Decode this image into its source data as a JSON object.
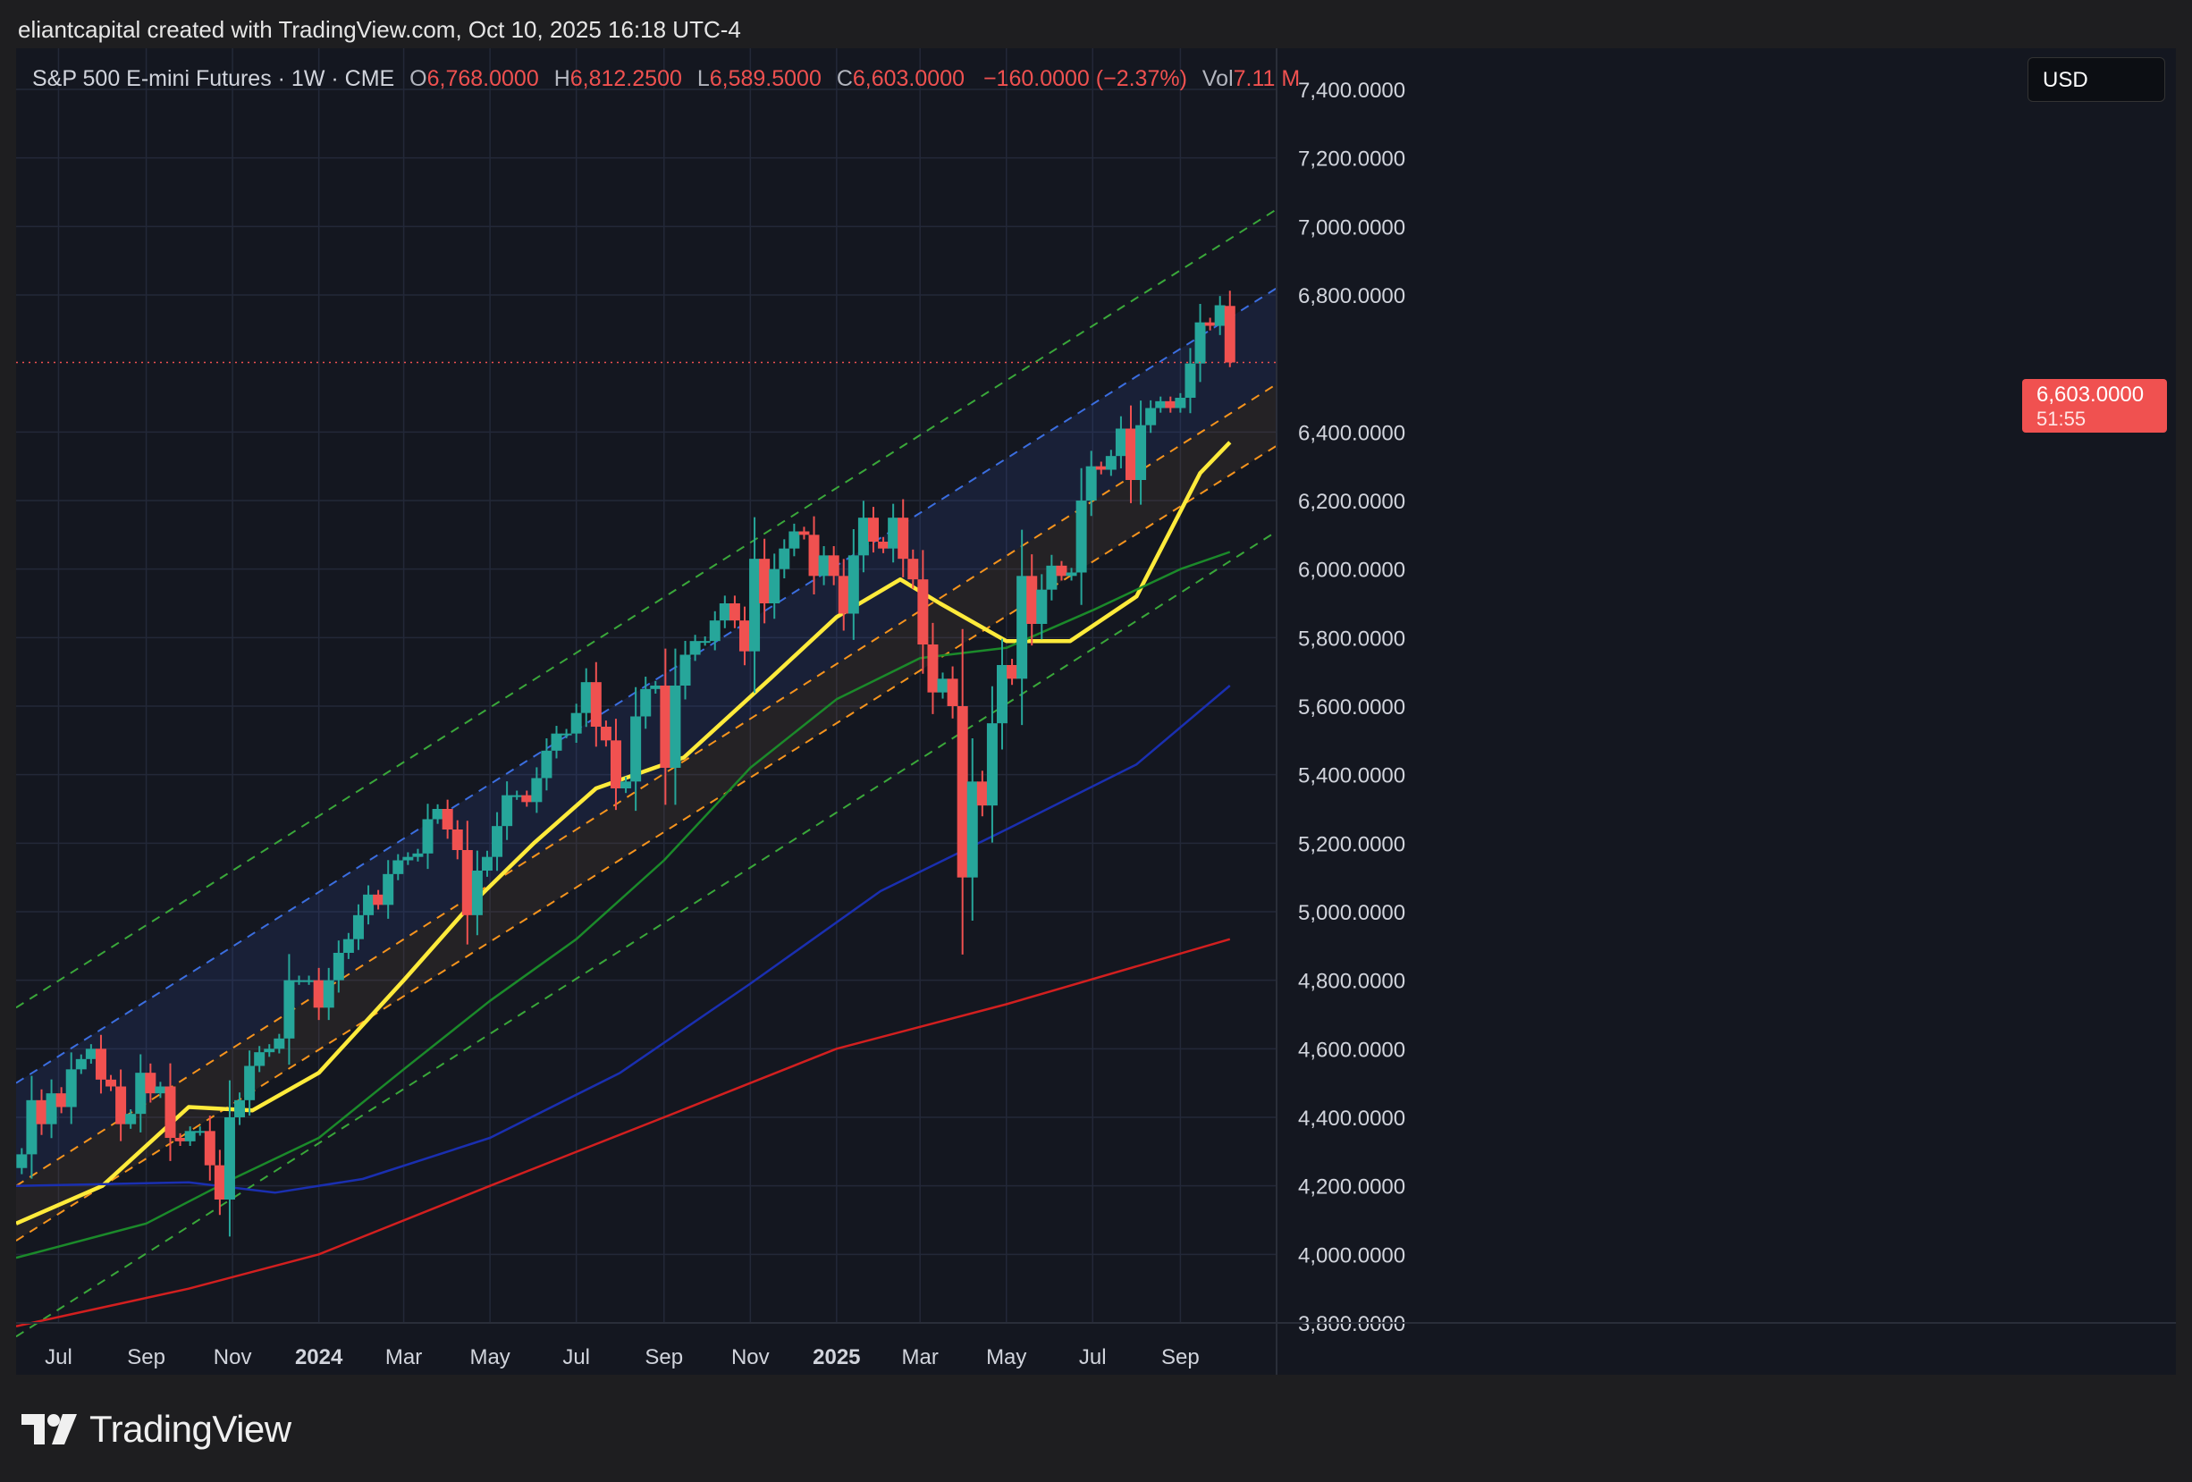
{
  "header": {
    "attribution": "eliantcapital created with TradingView.com, Oct 10, 2025 16:18 UTC-4"
  },
  "legend": {
    "symbol": "S&P 500 E-mini Futures · 1W · CME",
    "o_label": "O",
    "o_value": "6,768.0000",
    "h_label": "H",
    "h_value": "6,812.2500",
    "l_label": "L",
    "l_value": "6,589.5000",
    "c_label": "C",
    "c_value": "6,603.0000",
    "change": "−160.0000 (−2.37%)",
    "vol_label": "Vol",
    "vol_value": "7.11 M"
  },
  "currency": "USD",
  "price_tag": {
    "price": "6,603.0000",
    "countdown": "51:55"
  },
  "brand": "TradingView",
  "colors": {
    "up": "#26a69a",
    "down": "#f05150",
    "ma_fast": "#ffeb3b",
    "ma_mid": "#1b8a2a",
    "ma_slow": "#1a2fb0",
    "ma_long": "#d21f1f",
    "channel_upper": "#3b6ee0",
    "channel_mid": "#f7941d",
    "channel_outer": "#3aa83a",
    "background": "#141720"
  },
  "chart_data": {
    "type": "candlestick",
    "timeframe": "1W",
    "y_ticks": [
      "7,400.0000",
      "7,200.0000",
      "7,000.0000",
      "6,800.0000",
      "6,400.0000",
      "6,200.0000",
      "6,000.0000",
      "5,800.0000",
      "5,600.0000",
      "5,400.0000",
      "5,200.0000",
      "5,000.0000",
      "4,800.0000",
      "4,600.0000",
      "4,400.0000",
      "4,200.0000",
      "4,000.0000",
      "3,800.0000"
    ],
    "x_ticks": [
      {
        "label": "Jul",
        "date": "2023-07-01",
        "bold": false
      },
      {
        "label": "Sep",
        "date": "2023-09-01",
        "bold": false
      },
      {
        "label": "Nov",
        "date": "2023-11-01",
        "bold": false
      },
      {
        "label": "2024",
        "date": "2024-01-01",
        "bold": true
      },
      {
        "label": "Mar",
        "date": "2024-03-01",
        "bold": false
      },
      {
        "label": "May",
        "date": "2024-05-01",
        "bold": false
      },
      {
        "label": "Jul",
        "date": "2024-07-01",
        "bold": false
      },
      {
        "label": "Sep",
        "date": "2024-09-01",
        "bold": false
      },
      {
        "label": "Nov",
        "date": "2024-11-01",
        "bold": false
      },
      {
        "label": "2025",
        "date": "2025-01-01",
        "bold": true
      },
      {
        "label": "Mar",
        "date": "2025-03-01",
        "bold": false
      },
      {
        "label": "May",
        "date": "2025-05-01",
        "bold": false
      },
      {
        "label": "Jul",
        "date": "2025-07-01",
        "bold": false
      },
      {
        "label": "Sep",
        "date": "2025-09-01",
        "bold": false
      }
    ],
    "ylim": [
      3800,
      7520
    ],
    "xlim": [
      "2023-06-01",
      "2025-11-08"
    ],
    "current_price": 6603,
    "closes": [
      [
        "2023-06-05",
        4292
      ],
      [
        "2023-06-12",
        4450
      ],
      [
        "2023-06-19",
        4380
      ],
      [
        "2023-06-26",
        4470
      ],
      [
        "2023-07-03",
        4430
      ],
      [
        "2023-07-10",
        4540
      ],
      [
        "2023-07-17",
        4570
      ],
      [
        "2023-07-24",
        4600
      ],
      [
        "2023-07-31",
        4510
      ],
      [
        "2023-08-07",
        4490
      ],
      [
        "2023-08-14",
        4380
      ],
      [
        "2023-08-21",
        4410
      ],
      [
        "2023-08-28",
        4530
      ],
      [
        "2023-09-04",
        4470
      ],
      [
        "2023-09-11",
        4490
      ],
      [
        "2023-09-18",
        4340
      ],
      [
        "2023-09-25",
        4330
      ],
      [
        "2023-10-02",
        4360
      ],
      [
        "2023-10-09",
        4360
      ],
      [
        "2023-10-16",
        4260
      ],
      [
        "2023-10-23",
        4160
      ],
      [
        "2023-10-30",
        4400
      ],
      [
        "2023-11-06",
        4450
      ],
      [
        "2023-11-13",
        4550
      ],
      [
        "2023-11-20",
        4590
      ],
      [
        "2023-11-27",
        4600
      ],
      [
        "2023-12-04",
        4630
      ],
      [
        "2023-12-11",
        4800
      ],
      [
        "2023-12-18",
        4800
      ],
      [
        "2023-12-25",
        4800
      ],
      [
        "2024-01-01",
        4720
      ],
      [
        "2024-01-08",
        4800
      ],
      [
        "2024-01-15",
        4880
      ],
      [
        "2024-01-22",
        4920
      ],
      [
        "2024-01-29",
        4990
      ],
      [
        "2024-02-05",
        5050
      ],
      [
        "2024-02-12",
        5020
      ],
      [
        "2024-02-19",
        5110
      ],
      [
        "2024-02-26",
        5150
      ],
      [
        "2024-03-04",
        5160
      ],
      [
        "2024-03-11",
        5170
      ],
      [
        "2024-03-18",
        5270
      ],
      [
        "2024-03-25",
        5300
      ],
      [
        "2024-04-01",
        5240
      ],
      [
        "2024-04-08",
        5180
      ],
      [
        "2024-04-15",
        4990
      ],
      [
        "2024-04-22",
        5120
      ],
      [
        "2024-04-29",
        5160
      ],
      [
        "2024-05-06",
        5250
      ],
      [
        "2024-05-13",
        5340
      ],
      [
        "2024-05-20",
        5340
      ],
      [
        "2024-05-27",
        5320
      ],
      [
        "2024-06-03",
        5390
      ],
      [
        "2024-06-10",
        5470
      ],
      [
        "2024-06-17",
        5520
      ],
      [
        "2024-06-24",
        5520
      ],
      [
        "2024-07-01",
        5580
      ],
      [
        "2024-07-08",
        5670
      ],
      [
        "2024-07-15",
        5540
      ],
      [
        "2024-07-22",
        5500
      ],
      [
        "2024-07-29",
        5360
      ],
      [
        "2024-08-05",
        5380
      ],
      [
        "2024-08-12",
        5570
      ],
      [
        "2024-08-19",
        5650
      ],
      [
        "2024-08-26",
        5660
      ],
      [
        "2024-09-02",
        5420
      ],
      [
        "2024-09-09",
        5660
      ],
      [
        "2024-09-16",
        5750
      ],
      [
        "2024-09-23",
        5790
      ],
      [
        "2024-09-30",
        5790
      ],
      [
        "2024-10-07",
        5850
      ],
      [
        "2024-10-14",
        5900
      ],
      [
        "2024-10-21",
        5850
      ],
      [
        "2024-10-28",
        5760
      ],
      [
        "2024-11-04",
        6030
      ],
      [
        "2024-11-11",
        5900
      ],
      [
        "2024-11-18",
        6000
      ],
      [
        "2024-11-25",
        6060
      ],
      [
        "2024-12-02",
        6110
      ],
      [
        "2024-12-09",
        6100
      ],
      [
        "2024-12-16",
        5980
      ],
      [
        "2024-12-23",
        6040
      ],
      [
        "2024-12-30",
        5980
      ],
      [
        "2025-01-06",
        5870
      ],
      [
        "2025-01-13",
        6040
      ],
      [
        "2025-01-20",
        6150
      ],
      [
        "2025-01-27",
        6080
      ],
      [
        "2025-02-03",
        6060
      ],
      [
        "2025-02-10",
        6150
      ],
      [
        "2025-02-17",
        6030
      ],
      [
        "2025-02-24",
        5970
      ],
      [
        "2025-03-03",
        5780
      ],
      [
        "2025-03-10",
        5640
      ],
      [
        "2025-03-17",
        5680
      ],
      [
        "2025-03-24",
        5600
      ],
      [
        "2025-03-31",
        5100
      ],
      [
        "2025-04-07",
        5380
      ],
      [
        "2025-04-14",
        5310
      ],
      [
        "2025-04-21",
        5550
      ],
      [
        "2025-04-28",
        5720
      ],
      [
        "2025-05-05",
        5680
      ],
      [
        "2025-05-12",
        5980
      ],
      [
        "2025-05-19",
        5840
      ],
      [
        "2025-05-26",
        5940
      ],
      [
        "2025-06-02",
        6010
      ],
      [
        "2025-06-09",
        5980
      ],
      [
        "2025-06-16",
        5990
      ],
      [
        "2025-06-23",
        6200
      ],
      [
        "2025-06-30",
        6300
      ],
      [
        "2025-07-07",
        6290
      ],
      [
        "2025-07-14",
        6330
      ],
      [
        "2025-07-21",
        6410
      ],
      [
        "2025-07-28",
        6260
      ],
      [
        "2025-08-04",
        6420
      ],
      [
        "2025-08-11",
        6470
      ],
      [
        "2025-08-18",
        6490
      ],
      [
        "2025-08-25",
        6470
      ],
      [
        "2025-09-01",
        6500
      ],
      [
        "2025-09-08",
        6600
      ],
      [
        "2025-09-15",
        6720
      ],
      [
        "2025-09-22",
        6710
      ],
      [
        "2025-09-29",
        6770
      ],
      [
        "2025-10-06",
        6603
      ]
    ],
    "candles_shown": [
      {
        "date": "2025-10-06",
        "open": 6768,
        "high": 6812.25,
        "low": 6589.5,
        "close": 6603
      }
    ],
    "moving_averages": [
      {
        "color": "#ffeb3b",
        "points": [
          [
            "2023-06-01",
            4090
          ],
          [
            "2023-08-01",
            4200
          ],
          [
            "2023-10-01",
            4430
          ],
          [
            "2023-11-15",
            4420
          ],
          [
            "2024-01-01",
            4530
          ],
          [
            "2024-03-01",
            4800
          ],
          [
            "2024-04-15",
            5010
          ],
          [
            "2024-06-01",
            5200
          ],
          [
            "2024-07-15",
            5360
          ],
          [
            "2024-09-15",
            5450
          ],
          [
            "2024-11-15",
            5680
          ],
          [
            "2025-01-01",
            5860
          ],
          [
            "2025-02-15",
            5970
          ],
          [
            "2025-03-15",
            5900
          ],
          [
            "2025-05-01",
            5790
          ],
          [
            "2025-06-15",
            5790
          ],
          [
            "2025-08-01",
            5920
          ],
          [
            "2025-09-15",
            6280
          ],
          [
            "2025-10-06",
            6370
          ]
        ]
      },
      {
        "color": "#1b8a2a",
        "points": [
          [
            "2023-06-01",
            3990
          ],
          [
            "2023-09-01",
            4090
          ],
          [
            "2023-11-01",
            4220
          ],
          [
            "2024-01-01",
            4340
          ],
          [
            "2024-03-01",
            4540
          ],
          [
            "2024-05-01",
            4740
          ],
          [
            "2024-07-01",
            4920
          ],
          [
            "2024-09-01",
            5150
          ],
          [
            "2024-11-01",
            5420
          ],
          [
            "2025-01-01",
            5620
          ],
          [
            "2025-03-01",
            5740
          ],
          [
            "2025-05-01",
            5770
          ],
          [
            "2025-07-01",
            5880
          ],
          [
            "2025-09-01",
            6000
          ],
          [
            "2025-10-06",
            6050
          ]
        ]
      },
      {
        "color": "#1a2fb0",
        "points": [
          [
            "2023-06-01",
            4200
          ],
          [
            "2023-10-01",
            4210
          ],
          [
            "2023-12-01",
            4180
          ],
          [
            "2024-02-01",
            4220
          ],
          [
            "2024-05-01",
            4340
          ],
          [
            "2024-08-01",
            4530
          ],
          [
            "2024-11-01",
            4790
          ],
          [
            "2025-02-01",
            5060
          ],
          [
            "2025-05-01",
            5240
          ],
          [
            "2025-08-01",
            5430
          ],
          [
            "2025-10-06",
            5660
          ]
        ]
      },
      {
        "color": "#d21f1f",
        "points": [
          [
            "2023-06-01",
            3790
          ],
          [
            "2023-10-01",
            3900
          ],
          [
            "2024-01-01",
            4000
          ],
          [
            "2024-05-01",
            4200
          ],
          [
            "2024-09-01",
            4400
          ],
          [
            "2025-01-01",
            4600
          ],
          [
            "2025-05-01",
            4730
          ],
          [
            "2025-10-06",
            4920
          ]
        ]
      }
    ],
    "channel_lines": [
      {
        "color": "#3aa83a",
        "from": [
          "2023-06-01",
          4720
        ],
        "to": [
          "2025-11-08",
          7050
        ]
      },
      {
        "color": "#3b6ee0",
        "from": [
          "2023-06-01",
          4500
        ],
        "to": [
          "2025-11-08",
          6820
        ]
      },
      {
        "color": "#f7941d",
        "from": [
          "2023-06-01",
          4200
        ],
        "to": [
          "2025-11-08",
          6540
        ]
      },
      {
        "color": "#f7941d",
        "from": [
          "2023-06-01",
          4040
        ],
        "to": [
          "2025-11-08",
          6360
        ]
      },
      {
        "color": "#3aa83a",
        "from": [
          "2023-06-01",
          3760
        ],
        "to": [
          "2025-11-08",
          6110
        ]
      }
    ]
  }
}
